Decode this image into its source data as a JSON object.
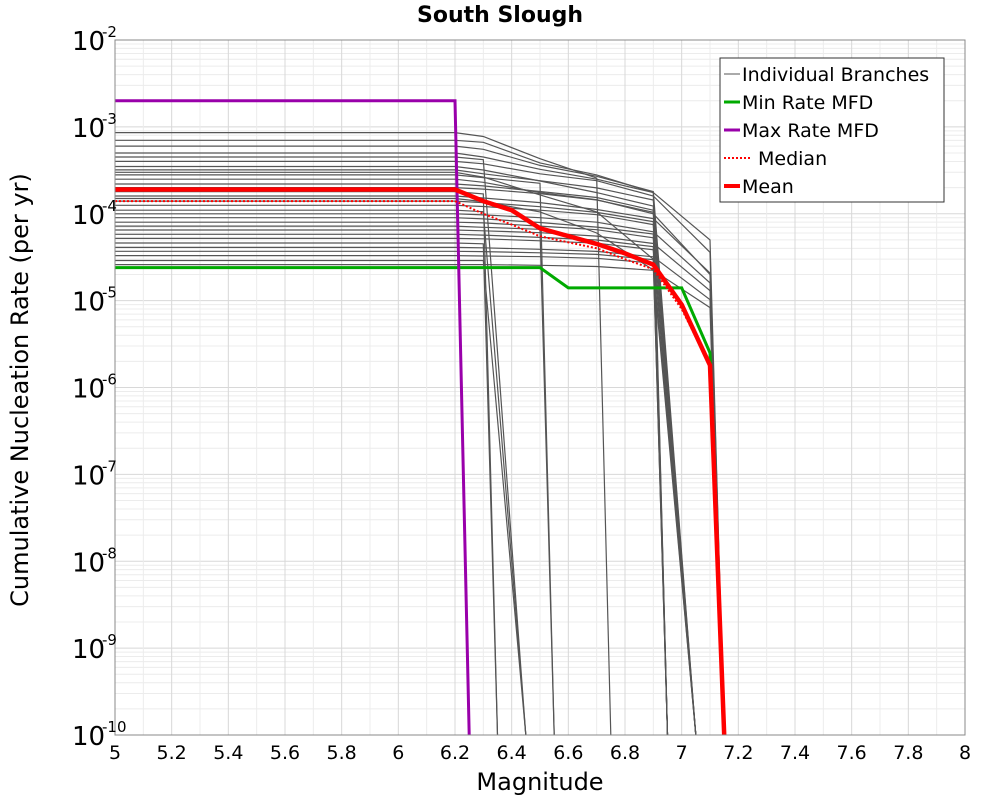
{
  "chart_data": {
    "type": "line",
    "title": "South Slough",
    "xlabel": "Magnitude",
    "ylabel": "Cumulative Nucleation Rate (per yr)",
    "xlim": [
      5,
      8
    ],
    "ylim": [
      1e-10,
      0.01
    ],
    "yscale": "log",
    "grid": true,
    "legend_position": "top-right",
    "x_ticks": [
      "5",
      "5.2",
      "5.4",
      "5.6",
      "5.8",
      "6",
      "6.2",
      "6.4",
      "6.6",
      "6.8",
      "7",
      "7.2",
      "7.4",
      "7.6",
      "7.8",
      "8"
    ],
    "y_ticks": [
      {
        "base": "10",
        "exp": "-10"
      },
      {
        "base": "10",
        "exp": "-9"
      },
      {
        "base": "10",
        "exp": "-8"
      },
      {
        "base": "10",
        "exp": "-7"
      },
      {
        "base": "10",
        "exp": "-6"
      },
      {
        "base": "10",
        "exp": "-5"
      },
      {
        "base": "10",
        "exp": "-4"
      },
      {
        "base": "10",
        "exp": "-3"
      },
      {
        "base": "10",
        "exp": "-2"
      }
    ],
    "legend": [
      {
        "label": "Individual Branches",
        "color": "#555555",
        "style": "thin"
      },
      {
        "label": "Min Rate MFD",
        "color": "#00aa00",
        "style": "solid"
      },
      {
        "label": "Max Rate MFD",
        "color": "#9900aa",
        "style": "solid"
      },
      {
        "label": "Median",
        "color": "#ff0000",
        "style": "dotted"
      },
      {
        "label": "Mean",
        "color": "#ff0000",
        "style": "thick"
      }
    ],
    "series": [
      {
        "name": "Min Rate MFD",
        "color": "#00aa00",
        "x": [
          5.0,
          6.2,
          6.3,
          6.5,
          6.6,
          6.9,
          7.0,
          7.1,
          7.15
        ],
        "y": [
          2.4e-05,
          2.4e-05,
          2.4e-05,
          2.4e-05,
          1.4e-05,
          1.4e-05,
          1.4e-05,
          2.5e-06,
          1e-10
        ]
      },
      {
        "name": "Max Rate MFD",
        "color": "#9900aa",
        "x": [
          5.0,
          6.2,
          6.25
        ],
        "y": [
          0.002,
          0.002,
          1e-10
        ]
      },
      {
        "name": "Median",
        "color": "#ff0000",
        "x": [
          5.0,
          6.2,
          6.3,
          6.4,
          6.5,
          6.7,
          6.8,
          6.9,
          7.0,
          7.1,
          7.15
        ],
        "y": [
          0.00014,
          0.00014,
          0.0001,
          7.5e-05,
          5.5e-05,
          4e-05,
          3e-05,
          2.3e-05,
          8e-06,
          1.8e-06,
          1e-10
        ]
      },
      {
        "name": "Mean",
        "color": "#ff0000",
        "x": [
          5.0,
          6.2,
          6.3,
          6.4,
          6.5,
          6.7,
          6.8,
          6.9,
          7.0,
          7.1,
          7.15
        ],
        "y": [
          0.00019,
          0.00019,
          0.00014,
          0.00011,
          6.8e-05,
          4.5e-05,
          3.5e-05,
          2.6e-05,
          9e-06,
          1.8e-06,
          1e-10
        ]
      }
    ],
    "branches": [
      {
        "y0": 0.0007,
        "d": [
          0.95,
          0.55,
          0.4,
          0.25,
          0.05
        ],
        "cut": 6.95
      },
      {
        "y0": 0.0006,
        "d": [
          0.92,
          0.6,
          0.45,
          0.3,
          0.08
        ],
        "cut": 7.05
      },
      {
        "y0": 0.0005,
        "d": [
          0.9,
          0.65,
          0.5,
          0.35,
          0.1
        ],
        "cut": 7.15
      },
      {
        "y0": 0.00045,
        "d": [
          0.93,
          0.7,
          0.55,
          0.3,
          0.06
        ],
        "cut": 6.45
      },
      {
        "y0": 0.0004,
        "d": [
          0.94,
          0.72,
          0.6,
          0.4,
          0.09
        ],
        "cut": 7.15
      },
      {
        "y0": 0.00035,
        "d": [
          0.91,
          0.68,
          0.5,
          0.35,
          0.07
        ],
        "cut": 6.95
      },
      {
        "y0": 0.00032,
        "d": [
          0.9,
          0.75,
          0.62,
          0.45,
          0.1
        ],
        "cut": 7.05
      },
      {
        "y0": 0.00028,
        "d": [
          0.93,
          0.8,
          0.65,
          0.45,
          0.12
        ],
        "cut": 6.55
      },
      {
        "y0": 0.00025,
        "d": [
          0.92,
          0.7,
          0.58,
          0.4,
          0.08
        ],
        "cut": 7.15
      },
      {
        "y0": 0.00022,
        "d": [
          0.95,
          0.82,
          0.7,
          0.5,
          0.1
        ],
        "cut": 6.95
      },
      {
        "y0": 0.0002,
        "d": [
          0.96,
          0.85,
          0.72,
          0.52,
          0.12
        ],
        "cut": 7.05
      },
      {
        "y0": 0.00018,
        "d": [
          0.94,
          0.78,
          0.66,
          0.48,
          0.11
        ],
        "cut": 6.35
      },
      {
        "y0": 0.00016,
        "d": [
          0.95,
          0.84,
          0.7,
          0.55,
          0.13
        ],
        "cut": 7.15
      },
      {
        "y0": 0.00014,
        "d": [
          0.96,
          0.86,
          0.74,
          0.58,
          0.14
        ],
        "cut": 6.95
      },
      {
        "y0": 0.000125,
        "d": [
          0.97,
          0.88,
          0.78,
          0.6,
          0.15
        ],
        "cut": 7.05
      },
      {
        "y0": 0.00011,
        "d": [
          0.96,
          0.85,
          0.75,
          0.6,
          0.14
        ],
        "cut": 6.45
      },
      {
        "y0": 0.0001,
        "d": [
          0.97,
          0.9,
          0.8,
          0.62,
          0.16
        ],
        "cut": 7.15
      },
      {
        "y0": 9e-05,
        "d": [
          0.97,
          0.88,
          0.78,
          0.65,
          0.17
        ],
        "cut": 6.95
      },
      {
        "y0": 8e-05,
        "d": [
          0.98,
          0.9,
          0.82,
          0.66,
          0.18
        ],
        "cut": 7.05
      },
      {
        "y0": 7.2e-05,
        "d": [
          0.97,
          0.92,
          0.84,
          0.68,
          0.2
        ],
        "cut": 6.55
      },
      {
        "y0": 6.5e-05,
        "d": [
          0.98,
          0.93,
          0.85,
          0.7,
          0.2
        ],
        "cut": 7.15
      },
      {
        "y0": 5.8e-05,
        "d": [
          0.98,
          0.92,
          0.86,
          0.72,
          0.22
        ],
        "cut": 6.95
      },
      {
        "y0": 5.2e-05,
        "d": [
          0.99,
          0.94,
          0.88,
          0.74,
          0.22
        ],
        "cut": 7.05
      },
      {
        "y0": 4.6e-05,
        "d": [
          0.98,
          0.95,
          0.9,
          0.76,
          0.24
        ],
        "cut": 6.35
      },
      {
        "y0": 4.1e-05,
        "d": [
          0.99,
          0.95,
          0.9,
          0.78,
          0.25
        ],
        "cut": 7.15
      },
      {
        "y0": 3.7e-05,
        "d": [
          0.99,
          0.96,
          0.92,
          0.8,
          0.26
        ],
        "cut": 6.95
      },
      {
        "y0": 3.3e-05,
        "d": [
          0.99,
          0.97,
          0.93,
          0.82,
          0.28
        ],
        "cut": 7.05
      },
      {
        "y0": 2.9e-05,
        "d": [
          1.0,
          0.98,
          0.94,
          0.84,
          0.3
        ],
        "cut": 6.45
      },
      {
        "y0": 2.6e-05,
        "d": [
          1.0,
          0.98,
          0.95,
          0.86,
          0.32
        ],
        "cut": 7.15
      },
      {
        "y0": 0.00086,
        "d": [
          0.9,
          0.5,
          0.3,
          0.2,
          0.04
        ],
        "cut": 6.75
      },
      {
        "y0": 0.0003,
        "d": [
          0.88,
          0.55,
          0.35,
          0.1,
          0.02
        ],
        "cut": 6.95
      },
      {
        "y0": 0.00015,
        "d": [
          0.92,
          0.7,
          0.4,
          0.15,
          0.03
        ],
        "cut": 7.05
      }
    ]
  }
}
